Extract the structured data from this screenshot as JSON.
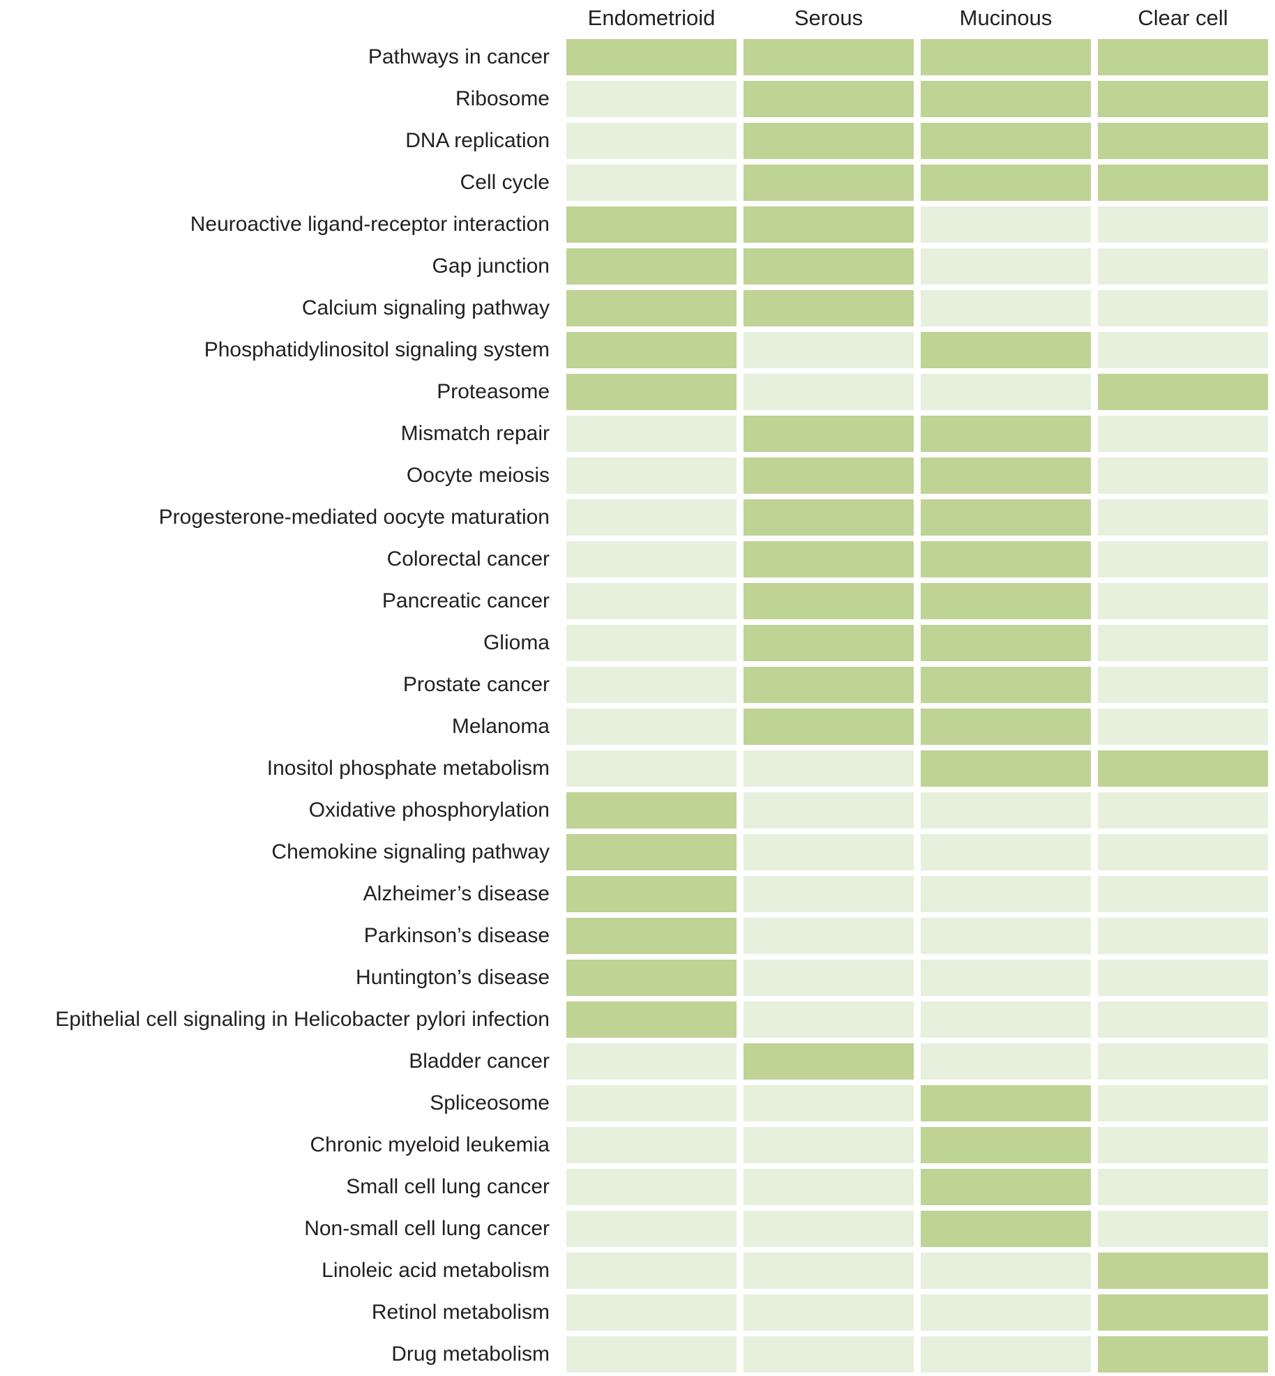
{
  "chart_data": {
    "type": "heatmap",
    "title": "",
    "columns": [
      "Endometrioid",
      "Serous",
      "Mucinous",
      "Clear cell"
    ],
    "colors": {
      "active_cell": "#bed394",
      "inactive_cell": "#e7f0dd",
      "text": "#231f20",
      "background": "#ffffff"
    },
    "value_encoding": "1 = highlighted (dark green) cell, 0 = faint (pale green) cell",
    "rows": [
      {
        "label": "Pathways in cancer",
        "values": [
          1,
          1,
          1,
          1
        ]
      },
      {
        "label": "Ribosome",
        "values": [
          0,
          1,
          1,
          1
        ]
      },
      {
        "label": "DNA replication",
        "values": [
          0,
          1,
          1,
          1
        ]
      },
      {
        "label": "Cell cycle",
        "values": [
          0,
          1,
          1,
          1
        ]
      },
      {
        "label": "Neuroactive ligand-receptor interaction",
        "values": [
          1,
          1,
          0,
          0
        ]
      },
      {
        "label": "Gap junction",
        "values": [
          1,
          1,
          0,
          0
        ]
      },
      {
        "label": "Calcium signaling pathway",
        "values": [
          1,
          1,
          0,
          0
        ]
      },
      {
        "label": "Phosphatidylinositol signaling system",
        "values": [
          1,
          0,
          1,
          0
        ]
      },
      {
        "label": "Proteasome",
        "values": [
          1,
          0,
          0,
          1
        ]
      },
      {
        "label": "Mismatch repair",
        "values": [
          0,
          1,
          1,
          0
        ]
      },
      {
        "label": "Oocyte meiosis",
        "values": [
          0,
          1,
          1,
          0
        ]
      },
      {
        "label": "Progesterone-mediated oocyte maturation",
        "values": [
          0,
          1,
          1,
          0
        ]
      },
      {
        "label": "Colorectal cancer",
        "values": [
          0,
          1,
          1,
          0
        ]
      },
      {
        "label": "Pancreatic cancer",
        "values": [
          0,
          1,
          1,
          0
        ]
      },
      {
        "label": "Glioma",
        "values": [
          0,
          1,
          1,
          0
        ]
      },
      {
        "label": "Prostate cancer",
        "values": [
          0,
          1,
          1,
          0
        ]
      },
      {
        "label": "Melanoma",
        "values": [
          0,
          1,
          1,
          0
        ]
      },
      {
        "label": "Inositol phosphate metabolism",
        "values": [
          0,
          0,
          1,
          1
        ]
      },
      {
        "label": "Oxidative phosphorylation",
        "values": [
          1,
          0,
          0,
          0
        ]
      },
      {
        "label": "Chemokine signaling pathway",
        "values": [
          1,
          0,
          0,
          0
        ]
      },
      {
        "label": "Alzheimer’s disease",
        "values": [
          1,
          0,
          0,
          0
        ]
      },
      {
        "label": "Parkinson’s disease",
        "values": [
          1,
          0,
          0,
          0
        ]
      },
      {
        "label": "Huntington’s disease",
        "values": [
          1,
          0,
          0,
          0
        ]
      },
      {
        "label": "Epithelial cell signaling in Helicobacter pylori infection",
        "values": [
          1,
          0,
          0,
          0
        ]
      },
      {
        "label": "Bladder cancer",
        "values": [
          0,
          1,
          0,
          0
        ]
      },
      {
        "label": "Spliceosome",
        "values": [
          0,
          0,
          1,
          0
        ]
      },
      {
        "label": "Chronic myeloid leukemia",
        "values": [
          0,
          0,
          1,
          0
        ]
      },
      {
        "label": "Small cell lung cancer",
        "values": [
          0,
          0,
          1,
          0
        ]
      },
      {
        "label": "Non-small cell lung cancer",
        "values": [
          0,
          0,
          1,
          0
        ]
      },
      {
        "label": "Linoleic acid metabolism",
        "values": [
          0,
          0,
          0,
          1
        ]
      },
      {
        "label": "Retinol metabolism",
        "values": [
          0,
          0,
          0,
          1
        ]
      },
      {
        "label": "Drug metabolism",
        "values": [
          0,
          0,
          0,
          1
        ]
      }
    ]
  }
}
